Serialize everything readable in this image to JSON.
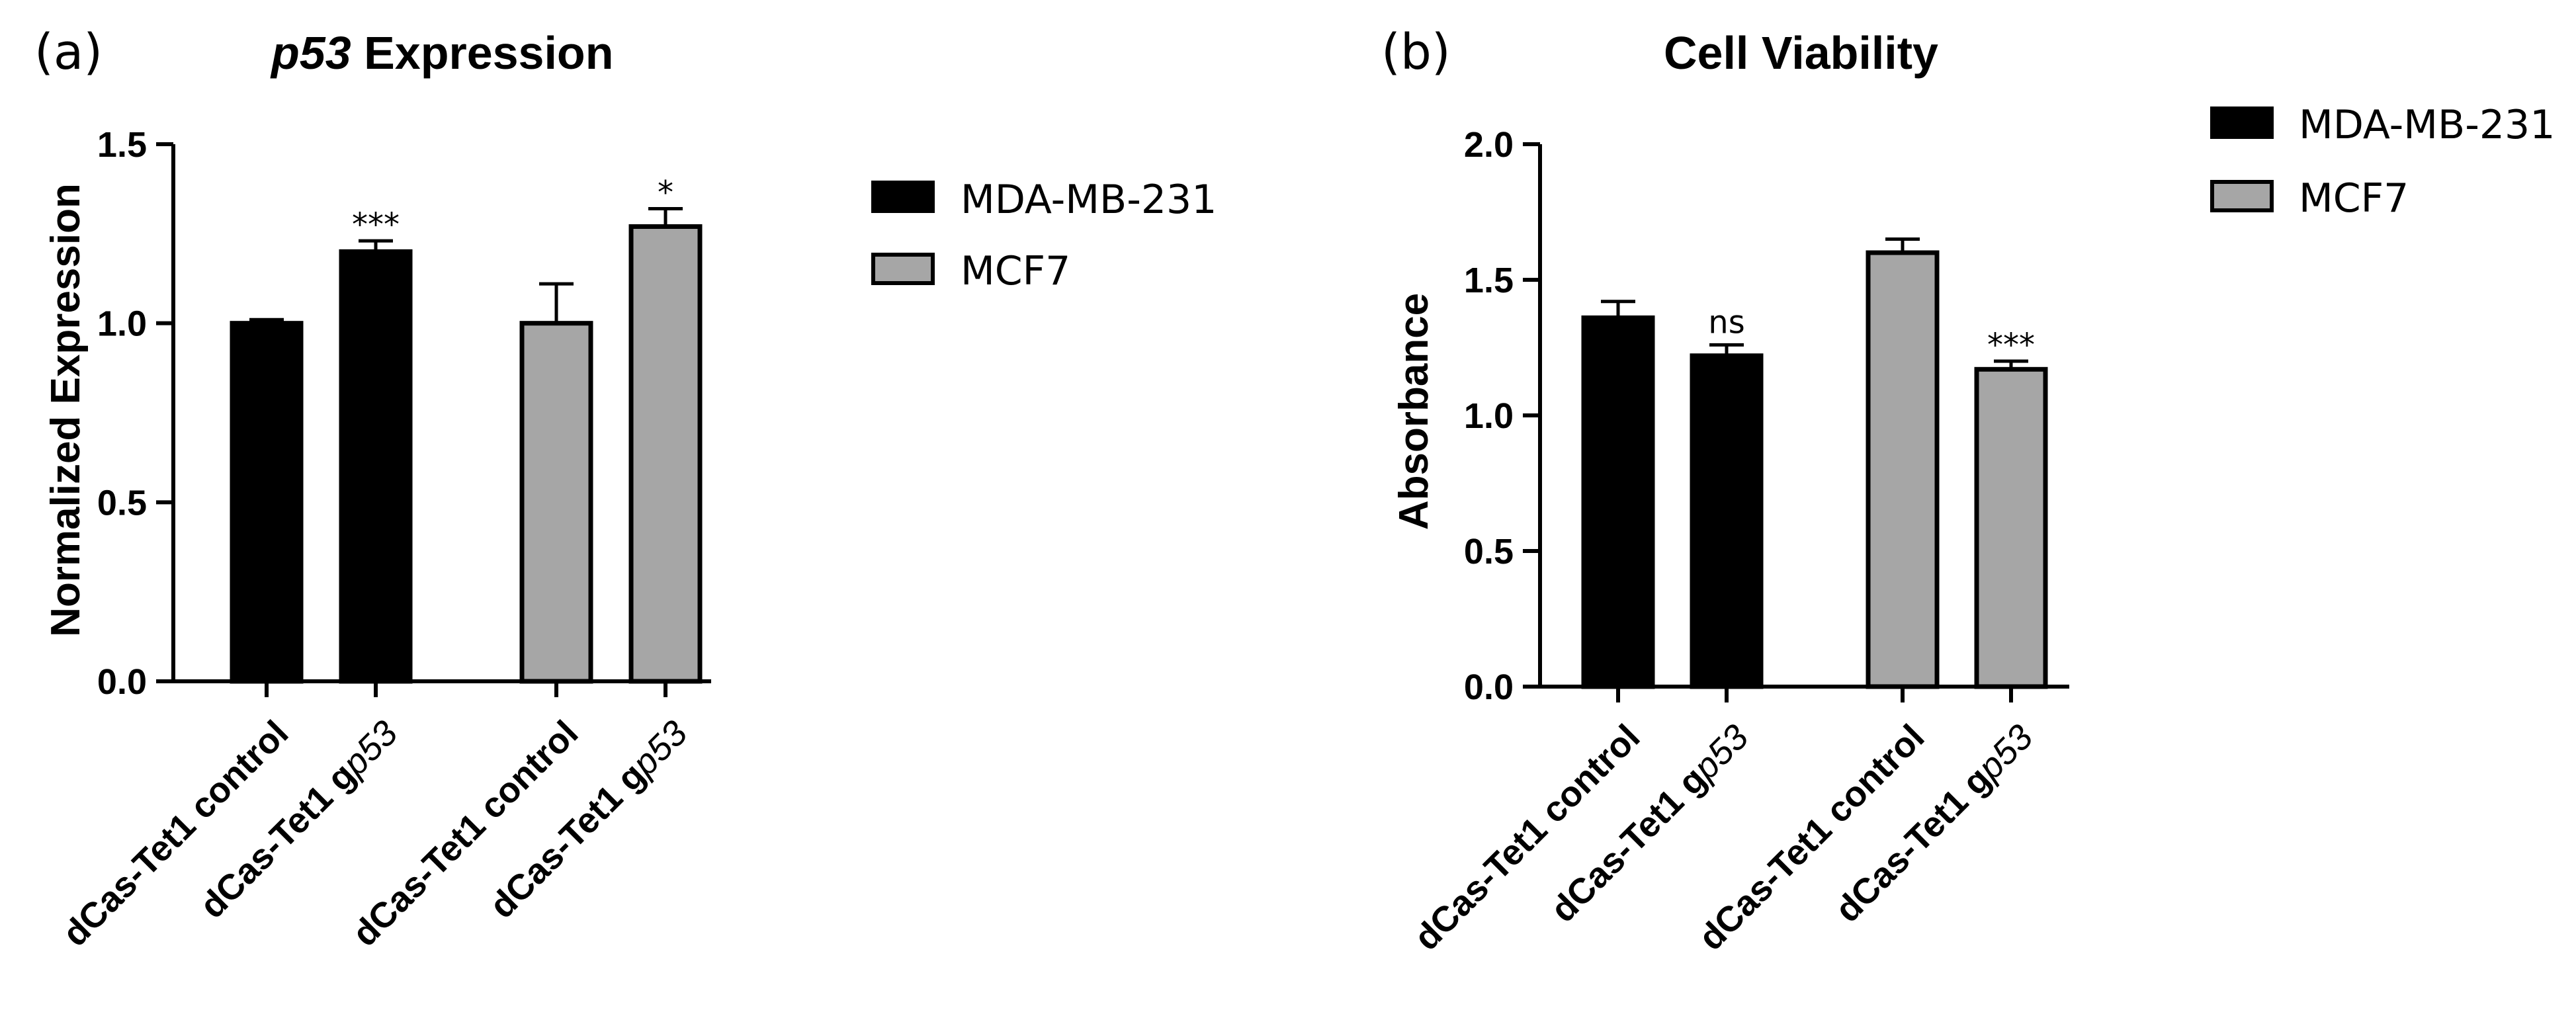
{
  "chart_data": [
    {
      "type": "bar",
      "panel_label": "(a)",
      "title_italic": "p53",
      "title_rest": " Expression",
      "ylabel": "Normalized Expression",
      "ylim": [
        0,
        1.5
      ],
      "yticks": [
        "0.0",
        "0.5",
        "1.0",
        "1.5"
      ],
      "ytick_values": [
        0,
        0.5,
        1.0,
        1.5
      ],
      "categories": [
        {
          "prefix": "dCas-Tet1 control",
          "italic": ""
        },
        {
          "prefix": "dCas-Tet1 g",
          "italic": "p53"
        },
        {
          "prefix": "dCas-Tet1 control",
          "italic": ""
        },
        {
          "prefix": "dCas-Tet1 g",
          "italic": "p53"
        }
      ],
      "bars": [
        {
          "series": "MDA-MB-231",
          "value": 1.0,
          "error": 0.01,
          "sig": ""
        },
        {
          "series": "MDA-MB-231",
          "value": 1.2,
          "error": 0.03,
          "sig": "***"
        },
        {
          "series": "MCF7",
          "value": 1.0,
          "error": 0.11,
          "sig": ""
        },
        {
          "series": "MCF7",
          "value": 1.27,
          "error": 0.05,
          "sig": "*"
        }
      ],
      "legend": [
        {
          "label": "MDA-MB-231",
          "color": "#000000"
        },
        {
          "label": "MCF7",
          "color": "#a6a6a6"
        }
      ]
    },
    {
      "type": "bar",
      "panel_label": "(b)",
      "title_italic": "",
      "title_rest": "Cell Viability",
      "ylabel": "Absorbance",
      "ylim": [
        0,
        2.0
      ],
      "yticks": [
        "0.0",
        "0.5",
        "1.0",
        "1.5",
        "2.0"
      ],
      "ytick_values": [
        0,
        0.5,
        1.0,
        1.5,
        2.0
      ],
      "categories": [
        {
          "prefix": "dCas-Tet1 control",
          "italic": ""
        },
        {
          "prefix": "dCas-Tet1 g",
          "italic": "p53"
        },
        {
          "prefix": "dCas-Tet1 control",
          "italic": ""
        },
        {
          "prefix": "dCas-Tet1 g",
          "italic": "p53"
        }
      ],
      "bars": [
        {
          "series": "MDA-MB-231",
          "value": 1.36,
          "error": 0.06,
          "sig": ""
        },
        {
          "series": "MDA-MB-231",
          "value": 1.22,
          "error": 0.04,
          "sig": "ns"
        },
        {
          "series": "MCF7",
          "value": 1.6,
          "error": 0.05,
          "sig": ""
        },
        {
          "series": "MCF7",
          "value": 1.17,
          "error": 0.03,
          "sig": "***"
        }
      ],
      "legend": [
        {
          "label": "MDA-MB-231",
          "color": "#000000"
        },
        {
          "label": "MCF7",
          "color": "#a6a6a6"
        }
      ]
    }
  ],
  "colors": {
    "MDA-MB-231": "#000000",
    "MCF7": "#a6a6a6",
    "edge": "#000000"
  }
}
